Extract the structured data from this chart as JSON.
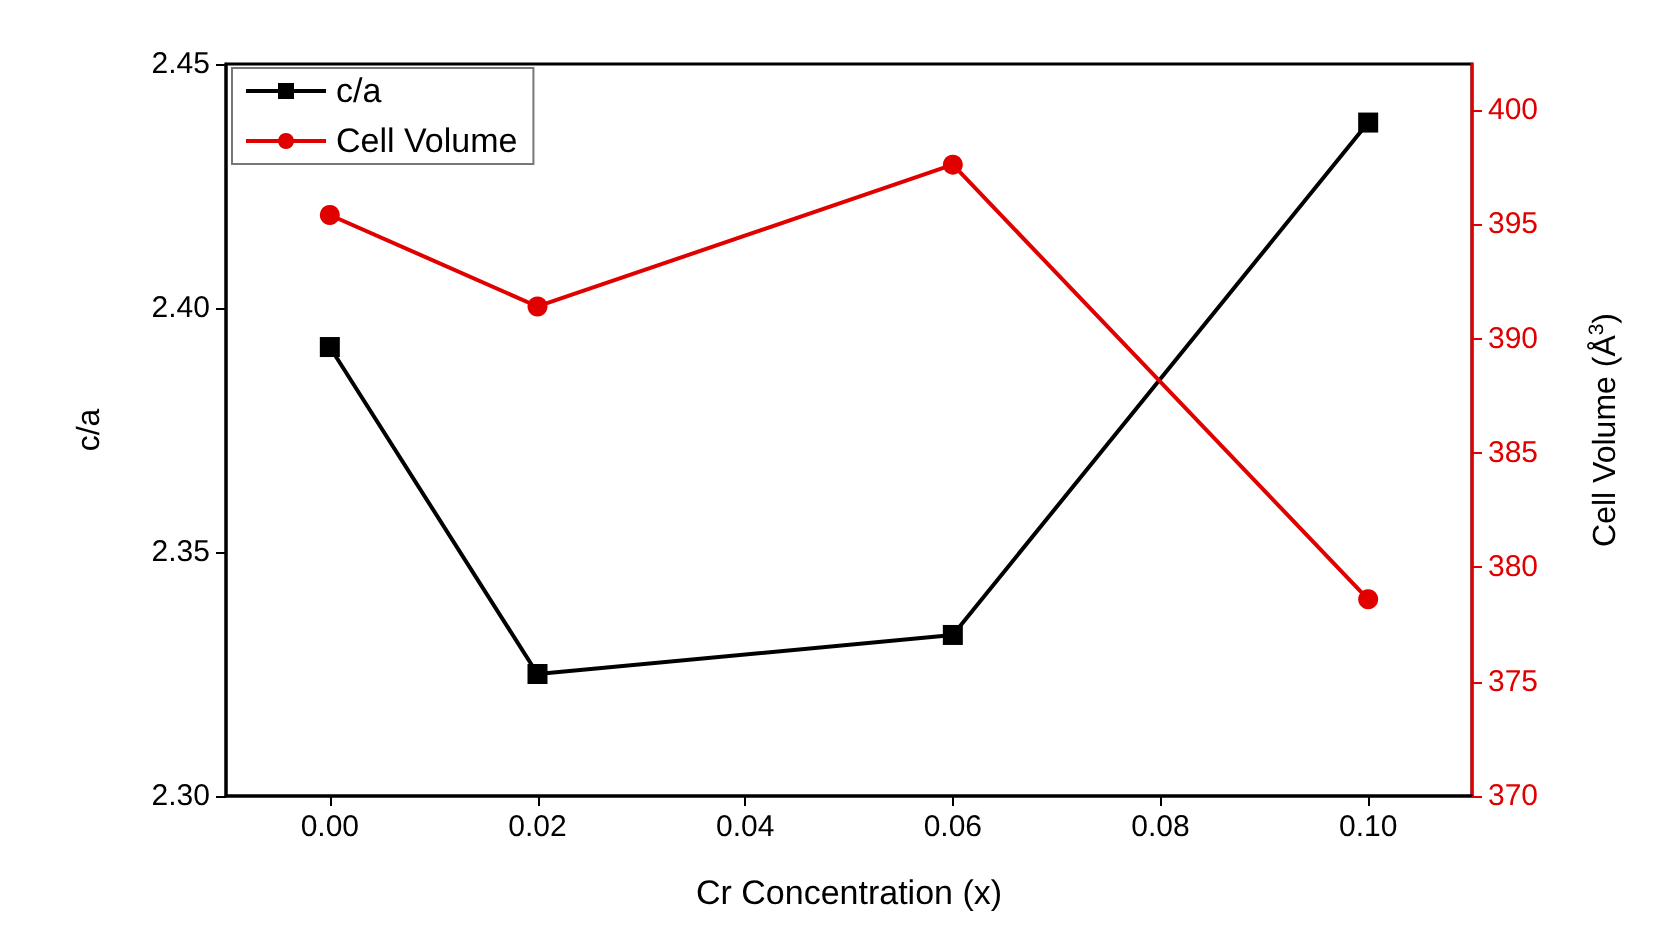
{
  "chart_data": {
    "type": "line",
    "xlabel": "Cr Concentration (x)",
    "ylabel": "c/a",
    "y2label": "Cell Volume (Å$^{3}$)",
    "x": [
      0.0,
      0.02,
      0.06,
      0.1
    ],
    "series": [
      {
        "name": "c/a",
        "color": "#000000",
        "marker": "square",
        "values": [
          2.392,
          2.325,
          2.333,
          2.438
        ]
      },
      {
        "name": "Cell Volume",
        "color": "#e00000",
        "marker": "circle",
        "axis": "y2",
        "values": [
          395.4,
          391.4,
          397.6,
          378.6
        ]
      }
    ],
    "xlim": [
      -0.01,
      0.11
    ],
    "xticks": [
      {
        "value": 0,
        "label": "0.00"
      },
      {
        "value": 0.02,
        "label": "0.02"
      },
      {
        "value": 0.04,
        "label": "0.04"
      },
      {
        "value": 0.06,
        "label": "0.06"
      },
      {
        "value": 0.08,
        "label": "0.08"
      },
      {
        "value": 0.1,
        "label": "0.10"
      }
    ],
    "ylim": [
      2.3,
      2.45
    ],
    "yticks": [
      {
        "value": 2.3,
        "label": "2.30"
      },
      {
        "value": 2.35,
        "label": "2.35"
      },
      {
        "value": 2.4,
        "label": "2.40"
      },
      {
        "value": 2.45,
        "label": "2.45"
      }
    ],
    "y2lim": [
      370,
      402
    ],
    "y2ticks": [
      370,
      375,
      380,
      385,
      390,
      395,
      400
    ],
    "legend": "top left",
    "grid": false
  }
}
